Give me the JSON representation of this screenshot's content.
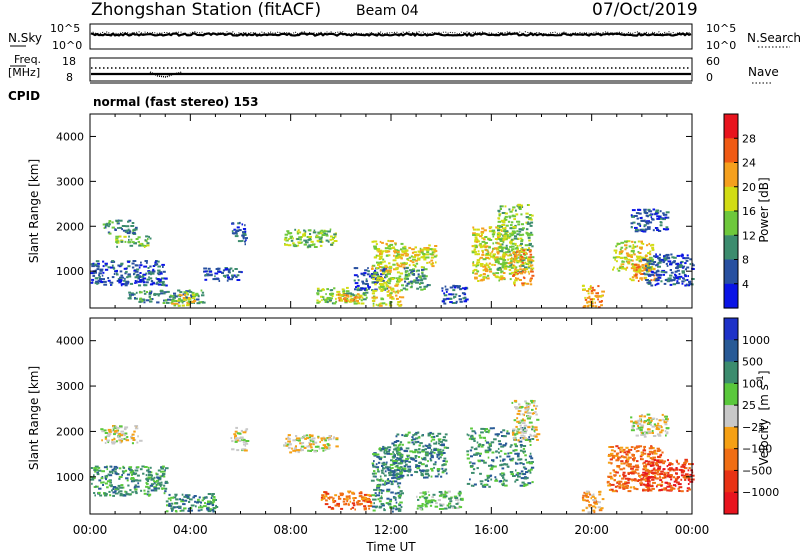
{
  "header": {
    "station": "Zhongshan Station (fitACF)",
    "beam": "Beam 04",
    "date": "07/Oct/2019"
  },
  "top_panels": {
    "nsky_label": "N.Sky",
    "nsky_ticks": [
      "10^5",
      "10^0"
    ],
    "nsearch_label": "N.Search",
    "nsearch_ticks": [
      "10^5",
      "10^0"
    ],
    "freq_label_line1": "Freq.",
    "freq_label_line2": "[MHz]",
    "freq_ticks": [
      "18",
      "8"
    ],
    "nave_label": "Nave",
    "nave_ticks": [
      "60",
      "0"
    ],
    "cpid_label": "CPID",
    "cpid_text": "normal (fast stereo) 153"
  },
  "chart_data": [
    {
      "type": "heatmap",
      "quantity": "Power",
      "ylabel": "Slant Range [km]",
      "ylim": [
        180,
        4500
      ],
      "yticks": [
        "1000",
        "2000",
        "3000",
        "4000"
      ],
      "colorbar_label": "Power [dB]",
      "colorbar_ticks": [
        "28",
        "24",
        "20",
        "16",
        "12",
        "8",
        "4"
      ],
      "colorbar_colors": [
        "#e8141e",
        "#f05a14",
        "#f5a01e",
        "#d2dc14",
        "#6ec83c",
        "#3c8c6e",
        "#2850a0",
        "#0a14e6"
      ],
      "xlim_hours": [
        0,
        24
      ],
      "xticks": [
        "00:00",
        "04:00",
        "08:00",
        "12:00",
        "16:00",
        "20:00",
        "00:00"
      ],
      "patches": [
        {
          "t": [
            0.5,
            1.8
          ],
          "r": [
            1850,
            2150
          ],
          "level": 2
        },
        {
          "t": [
            1.0,
            2.4
          ],
          "r": [
            1550,
            1800
          ],
          "level": 3
        },
        {
          "t": [
            0.0,
            3.0
          ],
          "r": [
            700,
            1250
          ],
          "level": 1
        },
        {
          "t": [
            1.5,
            4.5
          ],
          "r": [
            300,
            600
          ],
          "level": 2
        },
        {
          "t": [
            3.2,
            4.2
          ],
          "r": [
            250,
            550
          ],
          "level": 4
        },
        {
          "t": [
            4.5,
            6.0
          ],
          "r": [
            800,
            1100
          ],
          "level": 1
        },
        {
          "t": [
            5.6,
            6.2
          ],
          "r": [
            1600,
            2100
          ],
          "level": 1
        },
        {
          "t": [
            7.7,
            9.8
          ],
          "r": [
            1550,
            1950
          ],
          "level": 3
        },
        {
          "t": [
            9.0,
            11.0
          ],
          "r": [
            300,
            650
          ],
          "level": 3
        },
        {
          "t": [
            9.8,
            10.8
          ],
          "r": [
            350,
            520
          ],
          "level": 5
        },
        {
          "t": [
            10.5,
            11.8
          ],
          "r": [
            600,
            1100
          ],
          "level": 1
        },
        {
          "t": [
            11.2,
            12.4
          ],
          "r": [
            250,
            1700
          ],
          "level": 4
        },
        {
          "t": [
            12.0,
            13.8
          ],
          "r": [
            1100,
            1600
          ],
          "level": 4
        },
        {
          "t": [
            12.4,
            13.5
          ],
          "r": [
            600,
            1100
          ],
          "level": 2
        },
        {
          "t": [
            14.0,
            15.0
          ],
          "r": [
            300,
            700
          ],
          "level": 1
        },
        {
          "t": [
            15.2,
            16.8
          ],
          "r": [
            800,
            2000
          ],
          "level": 4
        },
        {
          "t": [
            16.2,
            17.6
          ],
          "r": [
            1000,
            2500
          ],
          "level": 3
        },
        {
          "t": [
            16.8,
            17.6
          ],
          "r": [
            700,
            1500
          ],
          "level": 5
        },
        {
          "t": [
            19.6,
            20.4
          ],
          "r": [
            200,
            700
          ],
          "level": 5
        },
        {
          "t": [
            20.8,
            22.4
          ],
          "r": [
            1000,
            1700
          ],
          "level": 4
        },
        {
          "t": [
            21.5,
            22.5
          ],
          "r": [
            800,
            1200
          ],
          "level": 5
        },
        {
          "t": [
            22.0,
            24.0
          ],
          "r": [
            700,
            1400
          ],
          "level": 1
        },
        {
          "t": [
            21.5,
            23.0
          ],
          "r": [
            1900,
            2400
          ],
          "level": 1
        }
      ]
    },
    {
      "type": "heatmap",
      "quantity": "Velocity",
      "ylabel": "Slant Range [km]",
      "ylim": [
        180,
        4500
      ],
      "yticks": [
        "1000",
        "2000",
        "3000",
        "4000"
      ],
      "colorbar_label_main": "Velocity",
      "colorbar_label_unit": "[m s",
      "colorbar_label_sup": "-1",
      "colorbar_label_close": "]",
      "colorbar_ticks": [
        "1000",
        "500",
        "100",
        "25",
        "−25",
        "−100",
        "−500",
        "−1000"
      ],
      "colorbar_colors": [
        "#1e32c8",
        "#285a96",
        "#3c8c6e",
        "#5ac83c",
        "#c8c8c8",
        "#f5a014",
        "#f06e14",
        "#e83214",
        "#e8141e"
      ],
      "xlim_hours": [
        0,
        24
      ],
      "xticks": [
        "00:00",
        "04:00",
        "08:00",
        "12:00",
        "16:00",
        "20:00",
        "00:00"
      ],
      "xlabel": "Time UT",
      "patches": [
        {
          "t": [
            0.4,
            2.0
          ],
          "r": [
            1750,
            2150
          ],
          "level": 4
        },
        {
          "t": [
            0.0,
            3.0
          ],
          "r": [
            600,
            1250
          ],
          "level": 6
        },
        {
          "t": [
            3.0,
            5.0
          ],
          "r": [
            250,
            650
          ],
          "level": 6
        },
        {
          "t": [
            5.6,
            6.2
          ],
          "r": [
            1600,
            2100
          ],
          "level": 4
        },
        {
          "t": [
            7.7,
            9.8
          ],
          "r": [
            1550,
            1950
          ],
          "level": 4
        },
        {
          "t": [
            9.2,
            11.2
          ],
          "r": [
            300,
            700
          ],
          "level": 2
        },
        {
          "t": [
            11.2,
            12.4
          ],
          "r": [
            250,
            1700
          ],
          "level": 6
        },
        {
          "t": [
            12.0,
            14.2
          ],
          "r": [
            1000,
            2000
          ],
          "level": 6
        },
        {
          "t": [
            13.0,
            14.8
          ],
          "r": [
            300,
            700
          ],
          "level": 5
        },
        {
          "t": [
            15.0,
            17.6
          ],
          "r": [
            800,
            2100
          ],
          "level": 6
        },
        {
          "t": [
            16.8,
            17.8
          ],
          "r": [
            1800,
            2700
          ],
          "level": 4
        },
        {
          "t": [
            19.6,
            20.4
          ],
          "r": [
            200,
            700
          ],
          "level": 3
        },
        {
          "t": [
            20.6,
            22.8
          ],
          "r": [
            700,
            1700
          ],
          "level": 2
        },
        {
          "t": [
            22.0,
            24.0
          ],
          "r": [
            700,
            1400
          ],
          "level": 1
        },
        {
          "t": [
            21.5,
            23.0
          ],
          "r": [
            1900,
            2400
          ],
          "level": 4
        }
      ]
    }
  ]
}
